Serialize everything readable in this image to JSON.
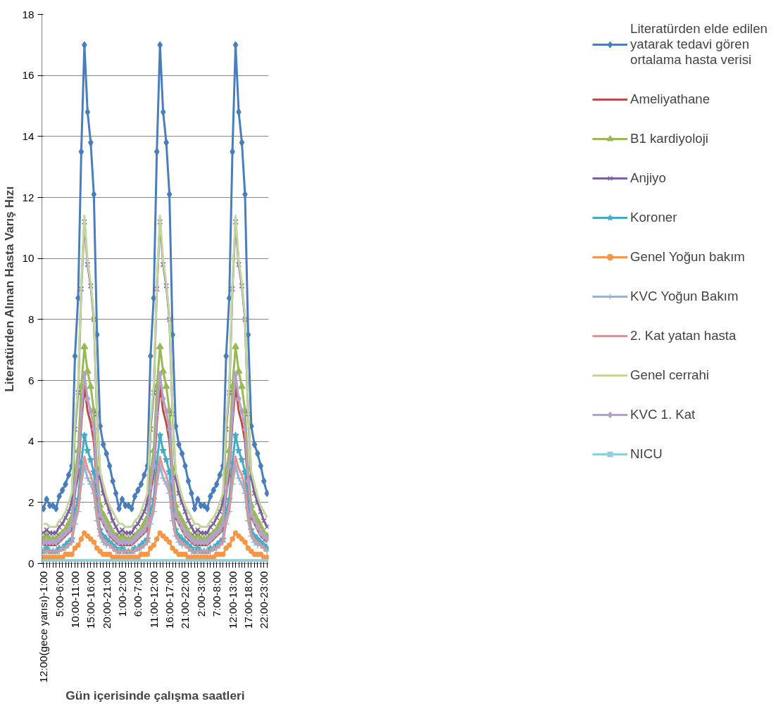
{
  "chart_data": {
    "type": "line",
    "xlabel": "Gün içerisinde çalışma saatleri",
    "ylabel": "Literatürden Alınan Hasta Varış Hızı",
    "categories": [
      "12:00(gece yarısı)-1:00",
      null,
      null,
      null,
      null,
      "5:00-6:00",
      null,
      null,
      null,
      null,
      "10:00-11:00",
      null,
      null,
      null,
      null,
      "15:00-16:00",
      null,
      null,
      null,
      null,
      "20:00-21:00",
      null,
      null,
      null,
      null,
      "1:00-2:00",
      null,
      null,
      null,
      null,
      "6:00-7:00",
      null,
      null,
      null,
      null,
      "11:00-12:00",
      null,
      null,
      null,
      null,
      "16:00-17:00",
      null,
      null,
      null,
      null,
      "21:00-22:00",
      null,
      null,
      null,
      null,
      "2:00-3:00",
      null,
      null,
      null,
      null,
      "7:00-8:00",
      null,
      null,
      null,
      null,
      "12:00-13:00",
      null,
      null,
      null,
      null,
      "17:00-18:00",
      null,
      null,
      null,
      null,
      "22:00-23:00",
      null
    ],
    "ylim": [
      0,
      18
    ],
    "yticks": [
      0,
      2,
      4,
      6,
      8,
      10,
      12,
      14,
      16,
      18
    ],
    "grid": "y",
    "legend": "right",
    "series": [
      {
        "name": "Literatürden elde edilen yatarak tedavi gören ortalama hasta verisi",
        "color": "#4a7ebb",
        "marker": "diamond",
        "values": [
          1.8,
          2.1,
          1.9,
          1.9,
          1.8,
          2.2,
          2.4,
          2.6,
          2.9,
          3.2,
          6.8,
          8.7,
          13.5,
          17,
          14.8,
          13.8,
          12.1,
          7.5,
          4.5,
          3.9,
          3.6,
          3.2,
          2.7,
          2.3,
          1.8,
          2.1,
          1.9,
          1.9,
          1.8,
          2.2,
          2.4,
          2.6,
          2.9,
          3.2,
          6.8,
          8.7,
          13.5,
          17,
          14.8,
          13.8,
          12.1,
          7.5,
          4.5,
          3.9,
          3.6,
          3.2,
          2.7,
          2.3,
          1.8,
          2.1,
          1.9,
          1.9,
          1.8,
          2.2,
          2.4,
          2.6,
          2.9,
          3.2,
          6.8,
          8.7,
          13.5,
          17,
          14.8,
          13.8,
          12.1,
          7.5,
          4.5,
          3.9,
          3.6,
          3.2,
          2.7,
          2.3
        ]
      },
      {
        "name": "Ameliyathane",
        "color": "#be4b48",
        "marker": "none",
        "values": [
          0.6,
          0.6,
          0.6,
          0.6,
          0.6,
          0.7,
          0.8,
          0.9,
          1.0,
          1.1,
          2.3,
          2.9,
          4.6,
          5.8,
          5.0,
          4.6,
          4.0,
          2.5,
          1.5,
          1.3,
          1.1,
          0.9,
          0.8,
          0.7,
          0.6,
          0.6,
          0.6,
          0.6,
          0.6,
          0.7,
          0.8,
          0.9,
          1.0,
          1.1,
          2.3,
          2.9,
          4.6,
          5.8,
          5.0,
          4.6,
          4.0,
          2.5,
          1.5,
          1.3,
          1.1,
          0.9,
          0.8,
          0.7,
          0.6,
          0.6,
          0.6,
          0.6,
          0.6,
          0.7,
          0.8,
          0.9,
          1.0,
          1.1,
          2.3,
          2.9,
          4.6,
          5.8,
          5.0,
          4.6,
          4.0,
          2.5,
          1.5,
          1.3,
          1.1,
          0.9,
          0.8,
          0.7
        ]
      },
      {
        "name": "B1 kardiyoloji",
        "color": "#98b954",
        "marker": "triangle",
        "values": [
          0.8,
          0.9,
          0.8,
          0.8,
          0.8,
          0.9,
          1.0,
          1.1,
          1.3,
          1.5,
          3.0,
          3.7,
          5.8,
          7.1,
          6.3,
          5.8,
          5.0,
          3.1,
          1.9,
          1.6,
          1.4,
          1.2,
          1.0,
          0.9,
          0.8,
          0.9,
          0.8,
          0.8,
          0.8,
          0.9,
          1.0,
          1.1,
          1.3,
          1.5,
          3.0,
          3.7,
          5.8,
          7.1,
          6.3,
          5.8,
          5.0,
          3.1,
          1.9,
          1.6,
          1.4,
          1.2,
          1.0,
          0.9,
          0.8,
          0.9,
          0.8,
          0.8,
          0.8,
          0.9,
          1.0,
          1.1,
          1.3,
          1.5,
          3.0,
          3.7,
          5.8,
          7.1,
          6.3,
          5.8,
          5.0,
          3.1,
          1.9,
          1.6,
          1.4,
          1.2,
          1.0,
          0.9
        ]
      },
      {
        "name": "Anjiyo",
        "color": "#7d60a0",
        "marker": "cross",
        "values": [
          1.0,
          1.1,
          1.0,
          1.0,
          1.0,
          1.2,
          1.3,
          1.5,
          1.7,
          2.0,
          4.4,
          5.6,
          9.0,
          11.2,
          9.8,
          9.1,
          8.0,
          4.9,
          2.8,
          2.3,
          2.0,
          1.7,
          1.4,
          1.2,
          1.0,
          1.1,
          1.0,
          1.0,
          1.0,
          1.2,
          1.3,
          1.5,
          1.7,
          2.0,
          4.4,
          5.6,
          9.0,
          11.2,
          9.8,
          9.1,
          8.0,
          4.9,
          2.8,
          2.3,
          2.0,
          1.7,
          1.4,
          1.2,
          1.0,
          1.1,
          1.0,
          1.0,
          1.0,
          1.2,
          1.3,
          1.5,
          1.7,
          2.0,
          4.4,
          5.6,
          9.0,
          11.2,
          9.8,
          9.1,
          8.0,
          4.9,
          2.8,
          2.3,
          2.0,
          1.7,
          1.4,
          1.2
        ]
      },
      {
        "name": "Koroner",
        "color": "#46aac5",
        "marker": "star",
        "values": [
          0.4,
          0.5,
          0.4,
          0.4,
          0.4,
          0.5,
          0.5,
          0.6,
          0.7,
          0.8,
          1.7,
          2.1,
          3.3,
          4.2,
          3.7,
          3.4,
          3.0,
          1.8,
          1.1,
          0.9,
          0.8,
          0.7,
          0.6,
          0.5,
          0.4,
          0.5,
          0.4,
          0.4,
          0.4,
          0.5,
          0.5,
          0.6,
          0.7,
          0.8,
          1.7,
          2.1,
          3.3,
          4.2,
          3.7,
          3.4,
          3.0,
          1.8,
          1.1,
          0.9,
          0.8,
          0.7,
          0.6,
          0.5,
          0.4,
          0.5,
          0.4,
          0.4,
          0.4,
          0.5,
          0.5,
          0.6,
          0.7,
          0.8,
          1.7,
          2.1,
          3.3,
          4.2,
          3.7,
          3.4,
          3.0,
          1.8,
          1.1,
          0.9,
          0.8,
          0.7,
          0.6,
          0.5
        ]
      },
      {
        "name": "Genel Yoğun bakım",
        "color": "#f79646",
        "marker": "circle",
        "values": [
          0.2,
          0.2,
          0.2,
          0.2,
          0.2,
          0.2,
          0.2,
          0.3,
          0.3,
          0.3,
          0.5,
          0.6,
          0.8,
          1.0,
          0.9,
          0.8,
          0.7,
          0.5,
          0.4,
          0.3,
          0.3,
          0.3,
          0.2,
          0.2,
          0.2,
          0.2,
          0.2,
          0.2,
          0.2,
          0.2,
          0.2,
          0.3,
          0.3,
          0.3,
          0.5,
          0.6,
          0.8,
          1.0,
          0.9,
          0.8,
          0.7,
          0.5,
          0.4,
          0.3,
          0.3,
          0.3,
          0.2,
          0.2,
          0.2,
          0.2,
          0.2,
          0.2,
          0.2,
          0.2,
          0.2,
          0.3,
          0.3,
          0.3,
          0.5,
          0.6,
          0.8,
          1.0,
          0.9,
          0.8,
          0.7,
          0.5,
          0.4,
          0.3,
          0.3,
          0.3,
          0.2,
          0.2
        ]
      },
      {
        "name": "KVC Yoğun Bakım",
        "color": "#95b3d7",
        "marker": "cross",
        "values": [
          0.4,
          0.4,
          0.4,
          0.4,
          0.4,
          0.4,
          0.5,
          0.5,
          0.6,
          0.7,
          1.3,
          1.7,
          2.6,
          3.2,
          2.8,
          2.6,
          2.3,
          1.4,
          0.9,
          0.7,
          0.6,
          0.6,
          0.5,
          0.4,
          0.4,
          0.4,
          0.4,
          0.4,
          0.4,
          0.4,
          0.5,
          0.5,
          0.6,
          0.7,
          1.3,
          1.7,
          2.6,
          3.2,
          2.8,
          2.6,
          2.3,
          1.4,
          0.9,
          0.7,
          0.6,
          0.6,
          0.5,
          0.4,
          0.4,
          0.4,
          0.4,
          0.4,
          0.4,
          0.4,
          0.5,
          0.5,
          0.6,
          0.7,
          1.3,
          1.7,
          2.6,
          3.2,
          2.8,
          2.6,
          2.3,
          1.4,
          0.9,
          0.7,
          0.6,
          0.6,
          0.5,
          0.4
        ]
      },
      {
        "name": "2. Kat yatan hasta",
        "color": "#d99694",
        "marker": "none",
        "values": [
          0.4,
          0.4,
          0.4,
          0.4,
          0.4,
          0.4,
          0.5,
          0.5,
          0.6,
          0.7,
          1.5,
          1.8,
          2.8,
          3.5,
          3.1,
          2.9,
          2.5,
          1.6,
          0.9,
          0.8,
          0.7,
          0.6,
          0.5,
          0.4,
          0.4,
          0.4,
          0.4,
          0.4,
          0.4,
          0.4,
          0.5,
          0.5,
          0.6,
          0.7,
          1.5,
          1.8,
          2.8,
          3.5,
          3.1,
          2.9,
          2.5,
          1.6,
          0.9,
          0.8,
          0.7,
          0.6,
          0.5,
          0.4,
          0.4,
          0.4,
          0.4,
          0.4,
          0.4,
          0.4,
          0.5,
          0.5,
          0.6,
          0.7,
          1.5,
          1.8,
          2.8,
          3.5,
          3.1,
          2.9,
          2.5,
          1.6,
          0.9,
          0.8,
          0.7,
          0.6,
          0.5,
          0.4
        ]
      },
      {
        "name": "Genel cerrahi",
        "color": "#c3d69b",
        "marker": "none",
        "values": [
          1.3,
          1.3,
          1.2,
          1.2,
          1.2,
          1.4,
          1.5,
          1.7,
          2.0,
          2.3,
          4.6,
          5.8,
          9.1,
          11.4,
          9.9,
          9.2,
          8.1,
          5.0,
          3.0,
          2.6,
          2.2,
          1.9,
          1.7,
          1.5,
          1.3,
          1.3,
          1.2,
          1.2,
          1.2,
          1.4,
          1.5,
          1.7,
          2.0,
          2.3,
          4.6,
          5.8,
          9.1,
          11.4,
          9.9,
          9.2,
          8.1,
          5.0,
          3.0,
          2.6,
          2.2,
          1.9,
          1.7,
          1.5,
          1.3,
          1.3,
          1.2,
          1.2,
          1.2,
          1.4,
          1.5,
          1.7,
          2.0,
          2.3,
          4.6,
          5.8,
          9.1,
          11.4,
          9.9,
          9.2,
          8.1,
          5.0,
          3.0,
          2.6,
          2.2,
          1.9,
          1.7,
          1.5
        ]
      },
      {
        "name": "KVC 1. Kat",
        "color": "#b3a2c7",
        "marker": "diamond",
        "values": [
          0.7,
          0.7,
          0.7,
          0.7,
          0.7,
          0.8,
          0.9,
          1.0,
          1.1,
          1.3,
          2.5,
          3.2,
          4.9,
          6.2,
          5.4,
          5.0,
          4.4,
          2.7,
          1.6,
          1.4,
          1.2,
          1.0,
          0.9,
          0.8,
          0.7,
          0.7,
          0.7,
          0.7,
          0.7,
          0.8,
          0.9,
          1.0,
          1.1,
          1.3,
          2.5,
          3.2,
          4.9,
          6.2,
          5.4,
          5.0,
          4.4,
          2.7,
          1.6,
          1.4,
          1.2,
          1.0,
          0.9,
          0.8,
          0.7,
          0.7,
          0.7,
          0.7,
          0.7,
          0.8,
          0.9,
          1.0,
          1.1,
          1.3,
          2.5,
          3.2,
          4.9,
          6.2,
          5.4,
          5.0,
          4.4,
          2.7,
          1.6,
          1.4,
          1.2,
          1.0,
          0.9,
          0.8
        ]
      },
      {
        "name": "NICU",
        "color": "#92cddc",
        "marker": "square",
        "values": [
          0.1,
          0.1,
          0.1,
          0.1,
          0.1,
          0.1,
          0.1,
          0.1,
          0.1,
          0.1,
          0.1,
          0.1,
          0.1,
          0.1,
          0.1,
          0.1,
          0.1,
          0.1,
          0.1,
          0.1,
          0.1,
          0.1,
          0.1,
          0.1,
          0.1,
          0.1,
          0.1,
          0.1,
          0.1,
          0.1,
          0.1,
          0.1,
          0.1,
          0.1,
          0.1,
          0.1,
          0.1,
          0.1,
          0.1,
          0.1,
          0.1,
          0.1,
          0.1,
          0.1,
          0.1,
          0.1,
          0.1,
          0.1,
          0.1,
          0.1,
          0.1,
          0.1,
          0.1,
          0.1,
          0.1,
          0.1,
          0.1,
          0.1,
          0.1,
          0.1,
          0.1,
          0.1,
          0.1,
          0.1,
          0.1,
          0.1,
          0.1,
          0.1,
          0.1,
          0.1,
          0.1,
          0.1
        ]
      }
    ]
  }
}
